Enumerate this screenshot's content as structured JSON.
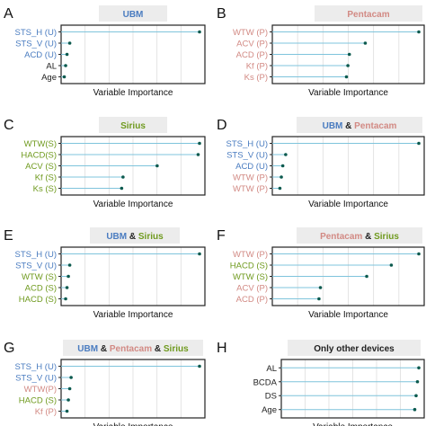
{
  "colors": {
    "ubm": "#4a7cc0",
    "pentacam": "#d28a84",
    "sirius": "#6f9a1e",
    "other": "#222222",
    "stem": "#7fc4dc",
    "dot": "#0c5a4e",
    "strip": "#ececec",
    "frame": "#222222",
    "grid": "#dddddd"
  },
  "chart_data": [
    {
      "type": "lollipop",
      "letter": "A",
      "title": [
        {
          "text": "UBM",
          "group": "ubm"
        }
      ],
      "xlabel": "Variable Importance",
      "labels": [
        {
          "text": "STS_H (U)",
          "group": "ubm"
        },
        {
          "text": "STS_V (U)",
          "group": "ubm"
        },
        {
          "text": "ACD (U)",
          "group": "ubm"
        },
        {
          "text": "AL",
          "group": "other"
        },
        {
          "text": "Age",
          "group": "other"
        }
      ],
      "values": [
        100,
        5,
        3,
        2,
        1
      ],
      "xlim": [
        0,
        100
      ],
      "grid": true
    },
    {
      "type": "lollipop",
      "letter": "B",
      "title": [
        {
          "text": "Pentacam",
          "group": "pentacam"
        }
      ],
      "xlabel": "Variable Importance",
      "labels": [
        {
          "text": "WTW (P)",
          "group": "pentacam"
        },
        {
          "text": "ACV (P)",
          "group": "pentacam"
        },
        {
          "text": "ACD (P)",
          "group": "pentacam"
        },
        {
          "text": "Kf (P)",
          "group": "pentacam"
        },
        {
          "text": "Ks (P)",
          "group": "pentacam"
        }
      ],
      "values": [
        100,
        63,
        52,
        51,
        50
      ],
      "xlim": [
        0,
        100
      ],
      "grid": true
    },
    {
      "type": "lollipop",
      "letter": "C",
      "title": [
        {
          "text": "Sirius",
          "group": "sirius"
        }
      ],
      "xlabel": "Variable Importance",
      "labels": [
        {
          "text": "WTW(S)",
          "group": "sirius"
        },
        {
          "text": "HACD(S)",
          "group": "sirius"
        },
        {
          "text": "ACV (S)",
          "group": "sirius"
        },
        {
          "text": "Kf (S)",
          "group": "sirius"
        },
        {
          "text": "Ks (S)",
          "group": "sirius"
        }
      ],
      "values": [
        100,
        99,
        69,
        44,
        43
      ],
      "xlim": [
        0,
        100
      ],
      "grid": true
    },
    {
      "type": "lollipop",
      "letter": "D",
      "title": [
        {
          "text": "UBM",
          "group": "ubm"
        },
        {
          "text": " & ",
          "group": "other"
        },
        {
          "text": "Pentacam",
          "group": "pentacam"
        }
      ],
      "xlabel": "Variable Importance",
      "labels": [
        {
          "text": "STS_H (U)",
          "group": "ubm"
        },
        {
          "text": "STS_V (U)",
          "group": "ubm"
        },
        {
          "text": "ACD (U)",
          "group": "ubm"
        },
        {
          "text": "WTW (P)",
          "group": "pentacam"
        },
        {
          "text": "WTW (P)",
          "group": "pentacam"
        }
      ],
      "values": [
        100,
        8,
        6,
        5,
        4
      ],
      "xlim": [
        0,
        100
      ],
      "grid": true
    },
    {
      "type": "lollipop",
      "letter": "E",
      "title": [
        {
          "text": "UBM",
          "group": "ubm"
        },
        {
          "text": " & ",
          "group": "other"
        },
        {
          "text": "Sirius",
          "group": "sirius"
        }
      ],
      "xlabel": "Variable Importance",
      "labels": [
        {
          "text": "STS_H (U)",
          "group": "ubm"
        },
        {
          "text": "STS_V (U)",
          "group": "ubm"
        },
        {
          "text": "WTW (S)",
          "group": "sirius"
        },
        {
          "text": "ACD (S)",
          "group": "sirius"
        },
        {
          "text": "HACD (S)",
          "group": "sirius"
        }
      ],
      "values": [
        100,
        5,
        4,
        3,
        2
      ],
      "xlim": [
        0,
        100
      ],
      "grid": true
    },
    {
      "type": "lollipop",
      "letter": "F",
      "title": [
        {
          "text": "Pentacam",
          "group": "pentacam"
        },
        {
          "text": " & ",
          "group": "other"
        },
        {
          "text": "Sirius",
          "group": "sirius"
        }
      ],
      "xlabel": "Variable Importance",
      "labels": [
        {
          "text": "WTW (P)",
          "group": "pentacam"
        },
        {
          "text": "HACD (S)",
          "group": "sirius"
        },
        {
          "text": "WTW (S)",
          "group": "sirius"
        },
        {
          "text": "ACV (P)",
          "group": "pentacam"
        },
        {
          "text": "ACD (P)",
          "group": "pentacam"
        }
      ],
      "values": [
        100,
        81,
        64,
        32,
        31
      ],
      "xlim": [
        0,
        100
      ],
      "grid": true
    },
    {
      "type": "lollipop",
      "letter": "G",
      "title": [
        {
          "text": "UBM",
          "group": "ubm"
        },
        {
          "text": " & ",
          "group": "other"
        },
        {
          "text": "Pentacam",
          "group": "pentacam"
        },
        {
          "text": " & ",
          "group": "other"
        },
        {
          "text": "Sirius",
          "group": "sirius"
        }
      ],
      "xlabel": "Variable Importance",
      "labels": [
        {
          "text": "STS_H (U)",
          "group": "ubm"
        },
        {
          "text": "STS_V (U)",
          "group": "ubm"
        },
        {
          "text": "WTW(P)",
          "group": "pentacam"
        },
        {
          "text": "HACD (S)",
          "group": "sirius"
        },
        {
          "text": "Kf (P)",
          "group": "pentacam"
        }
      ],
      "values": [
        100,
        6,
        5,
        4,
        3
      ],
      "xlim": [
        0,
        100
      ],
      "grid": true
    },
    {
      "type": "lollipop",
      "letter": "H",
      "title": [
        {
          "text": "Only other devices",
          "group": "other"
        }
      ],
      "xlabel": "Variable Importance",
      "labels": [
        {
          "text": "AL",
          "group": "other"
        },
        {
          "text": "BCDA",
          "group": "other"
        },
        {
          "text": "DS",
          "group": "other"
        },
        {
          "text": "Age",
          "group": "other"
        }
      ],
      "values": [
        100,
        99,
        98,
        97
      ],
      "xlim": [
        0,
        100
      ],
      "grid": true
    }
  ]
}
